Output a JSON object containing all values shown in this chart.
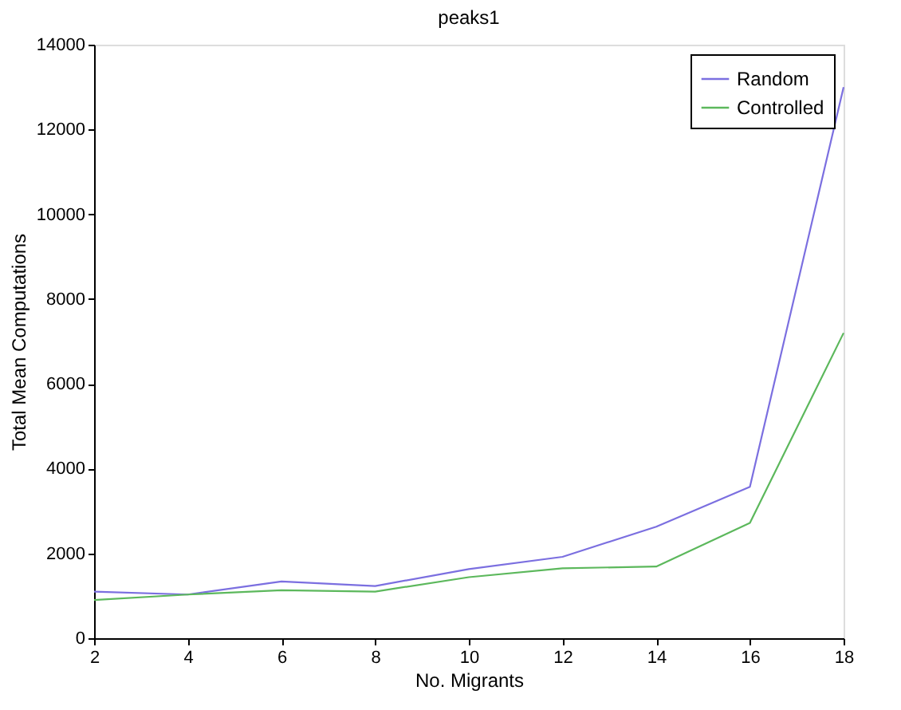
{
  "chart_data": {
    "type": "line",
    "title": "peaks1",
    "xlabel": "No. Migrants",
    "ylabel": "Total Mean Computations",
    "x": [
      2,
      4,
      6,
      8,
      10,
      12,
      14,
      16,
      18
    ],
    "series": [
      {
        "name": "Random",
        "color": "#7b6fe0",
        "values": [
          1100,
          1030,
          1340,
          1230,
          1630,
          1920,
          2630,
          3570,
          13000
        ]
      },
      {
        "name": "Controlled",
        "color": "#5cb85c",
        "values": [
          900,
          1030,
          1130,
          1100,
          1440,
          1650,
          1690,
          2720,
          7200
        ]
      }
    ],
    "xlim": [
      2,
      18
    ],
    "xticks": [
      2,
      4,
      6,
      8,
      10,
      12,
      14,
      16,
      18
    ],
    "ylim": [
      0,
      14000
    ],
    "yticks": [
      0,
      2000,
      4000,
      6000,
      8000,
      10000,
      12000,
      14000
    ],
    "grid": false,
    "legend": "top right",
    "marker": "none",
    "line_style": "solid"
  }
}
